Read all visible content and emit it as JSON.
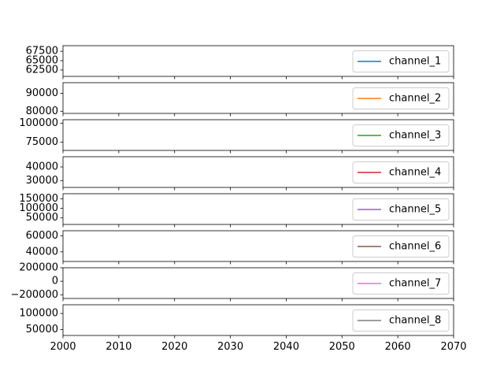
{
  "chart_data": {
    "type": "line",
    "layout": "stacked-subplots",
    "sharex": true,
    "xlim": [
      2000,
      2070
    ],
    "x_ticks": [
      "2000",
      "2010",
      "2020",
      "2030",
      "2040",
      "2050",
      "2060",
      "2070"
    ],
    "grid": false,
    "legend_placement": "center-right",
    "panels": [
      {
        "name": "channel_1",
        "color": "#1f77b4",
        "ylim": [
          60800,
          69000
        ],
        "y_ticks": [
          {
            "v": 62500,
            "label": "62500"
          },
          {
            "v": 65000,
            "label": "65000"
          },
          {
            "v": 67500,
            "label": "67500"
          }
        ],
        "x": [],
        "y": []
      },
      {
        "name": "channel_2",
        "color": "#ff7f0e",
        "ylim": [
          78800,
          96000
        ],
        "y_ticks": [
          {
            "v": 80000,
            "label": "80000"
          },
          {
            "v": 90000,
            "label": "90000"
          }
        ],
        "x": [],
        "y": []
      },
      {
        "name": "channel_3",
        "color": "#2ca02c",
        "ylim": [
          64000,
          104500
        ],
        "y_ticks": [
          {
            "v": 75000,
            "label": "75000"
          },
          {
            "v": 100000,
            "label": "100000"
          }
        ],
        "x": [],
        "y": []
      },
      {
        "name": "channel_4",
        "color": "#d62728",
        "ylim": [
          25000,
          47500
        ],
        "y_ticks": [
          {
            "v": 30000,
            "label": "30000"
          },
          {
            "v": 40000,
            "label": "40000"
          }
        ],
        "x": [],
        "y": []
      },
      {
        "name": "channel_5",
        "color": "#9467bd",
        "ylim": [
          16000,
          176000
        ],
        "y_ticks": [
          {
            "v": 50000,
            "label": "50000"
          },
          {
            "v": 100000,
            "label": "100000"
          },
          {
            "v": 150000,
            "label": "150000"
          }
        ],
        "x": [],
        "y": []
      },
      {
        "name": "channel_6",
        "color": "#8c564b",
        "ylim": [
          28000,
          66500
        ],
        "y_ticks": [
          {
            "v": 40000,
            "label": "40000"
          },
          {
            "v": 60000,
            "label": "60000"
          }
        ],
        "x": [],
        "y": []
      },
      {
        "name": "channel_7",
        "color": "#e377c2",
        "ylim": [
          -255000,
          200000
        ],
        "y_ticks": [
          {
            "v": -200000,
            "label": "−200000"
          },
          {
            "v": 0,
            "label": "0"
          },
          {
            "v": 200000,
            "label": "200000"
          }
        ],
        "x": [],
        "y": []
      },
      {
        "name": "channel_8",
        "color": "#7f7f7f",
        "ylim": [
          32000,
          127000
        ],
        "y_ticks": [
          {
            "v": 50000,
            "label": "50000"
          },
          {
            "v": 100000,
            "label": "100000"
          }
        ],
        "x": [],
        "y": []
      }
    ]
  }
}
